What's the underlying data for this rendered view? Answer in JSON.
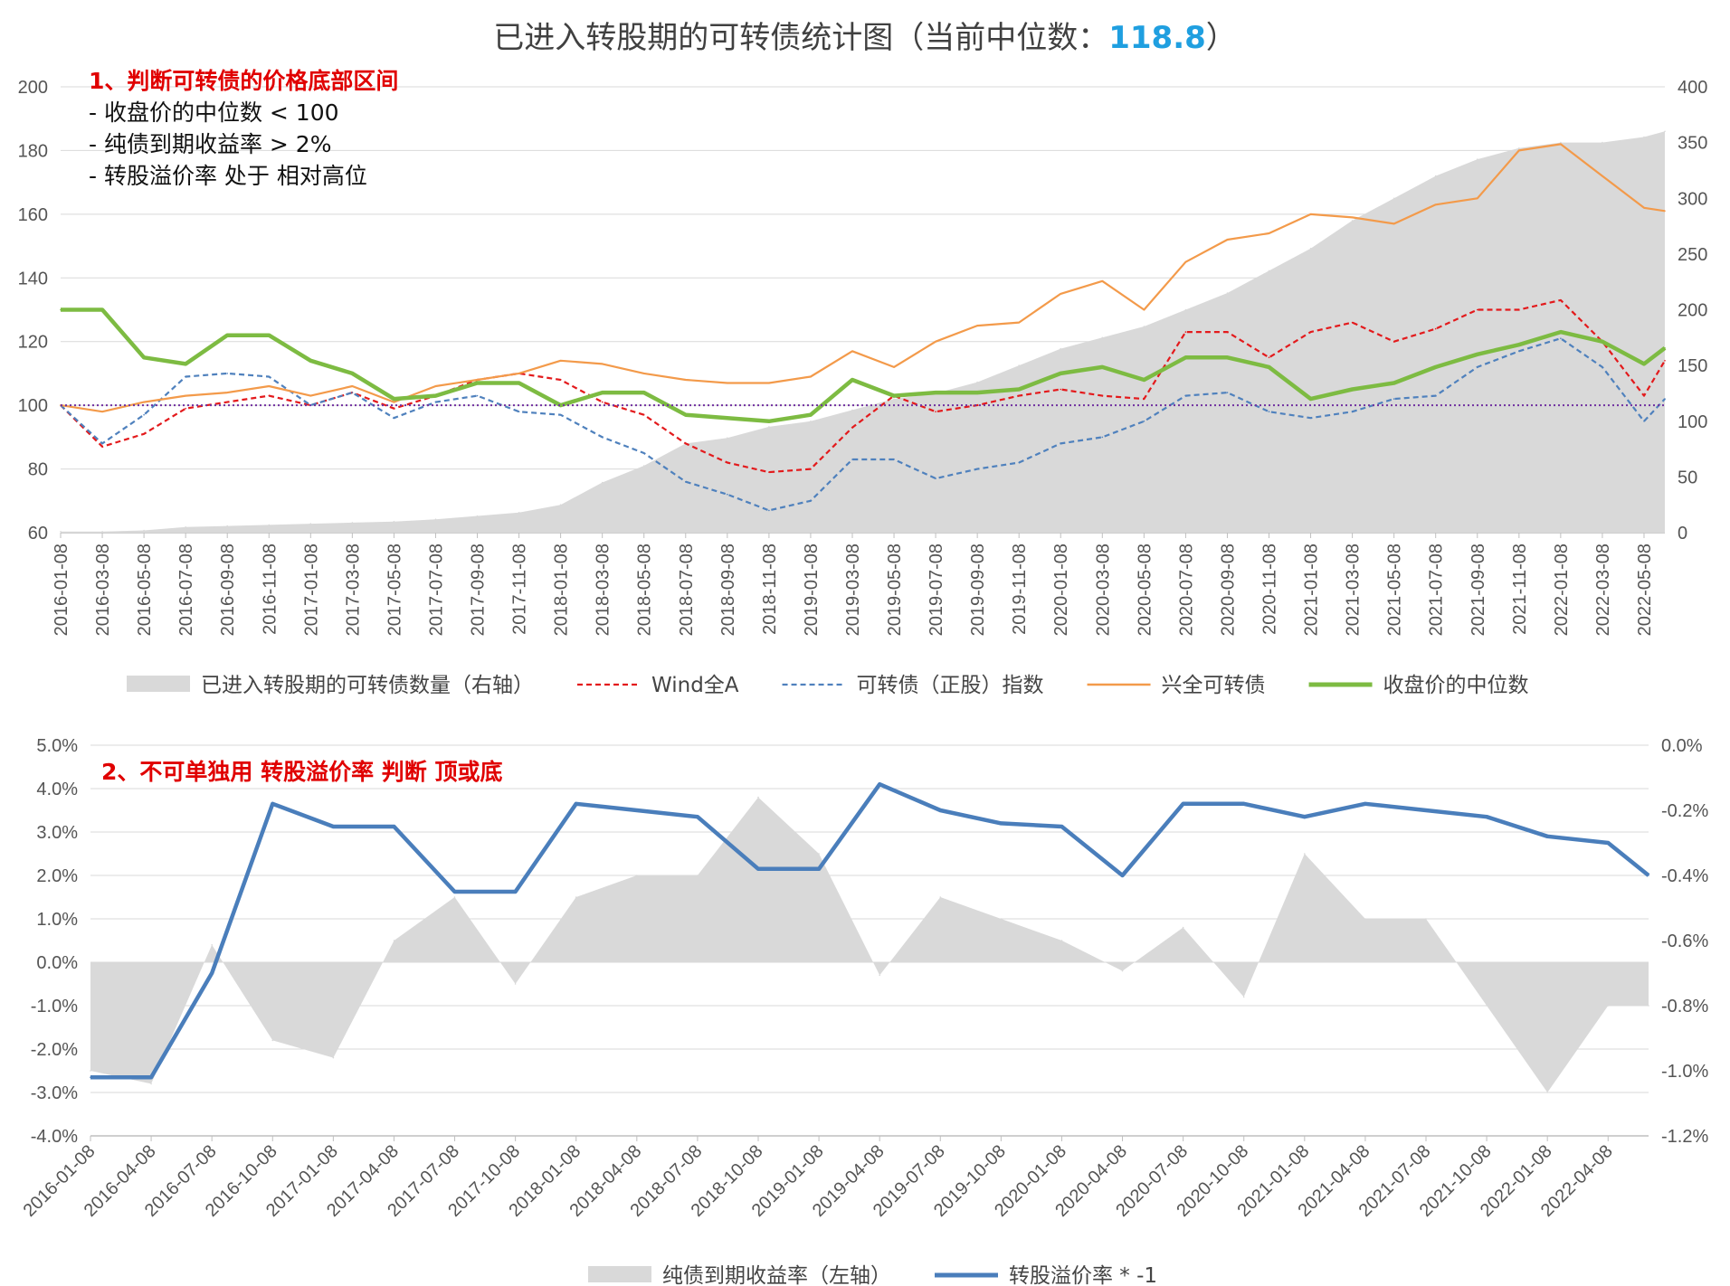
{
  "title": {
    "text": "已进入转股期的可转债统计图（当前中位数：",
    "median": "118.8",
    "close": "）"
  },
  "notes": {
    "note1": {
      "head": "1、判断可转债的价格底部区间",
      "lines": [
        "- 收盘价的中位数 < 100",
        "- 纯债到期收益率 > 2%",
        "- 转股溢价率 处于 相对高位"
      ]
    },
    "note2": {
      "head": "2、不可单独用 转股溢价率 判断 顶或底"
    }
  },
  "colors": {
    "area": "#d9d9d9",
    "wind": "#e31a1c",
    "cb_index": "#4f81bd",
    "xq_cb": "#f39a4a",
    "median": "#7dbb42",
    "premium": "#4a7ebb",
    "ref_line": "#7030a0",
    "grid": "#d9d9d9",
    "median_highlight": "#1f9fe0"
  },
  "chart_data": [
    {
      "type": "line",
      "chart_subtype": "line+area (dual axis)",
      "x": [
        "2016-01",
        "2016-03",
        "2016-05",
        "2016-07",
        "2016-09",
        "2016-11",
        "2017-01",
        "2017-03",
        "2017-05",
        "2017-07",
        "2017-09",
        "2017-11",
        "2018-01",
        "2018-03",
        "2018-05",
        "2018-07",
        "2018-09",
        "2018-11",
        "2019-01",
        "2019-03",
        "2019-05",
        "2019-07",
        "2019-09",
        "2019-11",
        "2020-01",
        "2020-03",
        "2020-05",
        "2020-07",
        "2020-09",
        "2020-11",
        "2021-01",
        "2021-03",
        "2021-05",
        "2021-07",
        "2021-09",
        "2021-11",
        "2022-01",
        "2022-03",
        "2022-05",
        "2022-06"
      ],
      "x_tick_labels": [
        "2016-01-08",
        "2016-03-08",
        "2016-05-08",
        "2016-07-08",
        "2016-09-08",
        "2016-11-08",
        "2017-01-08",
        "2017-03-08",
        "2017-05-08",
        "2017-07-08",
        "2017-09-08",
        "2017-11-08",
        "2018-01-08",
        "2018-03-08",
        "2018-05-08",
        "2018-07-08",
        "2018-09-08",
        "2018-11-08",
        "2019-01-08",
        "2019-03-08",
        "2019-05-08",
        "2019-07-08",
        "2019-09-08",
        "2019-11-08",
        "2020-01-08",
        "2020-03-08",
        "2020-05-08",
        "2020-07-08",
        "2020-09-08",
        "2020-11-08",
        "2021-01-08",
        "2021-03-08",
        "2021-05-08",
        "2021-07-08",
        "2021-09-08",
        "2021-11-08",
        "2022-01-08",
        "2022-03-08",
        "2022-05-08"
      ],
      "y_left": {
        "ylim": [
          60,
          200
        ],
        "ticks": [
          "200",
          "180",
          "160",
          "140",
          "120",
          "100",
          "80",
          "60"
        ]
      },
      "y_right": {
        "ylim": [
          0,
          400
        ],
        "ticks": [
          "400",
          "350",
          "300",
          "250",
          "200",
          "150",
          "100",
          "50",
          "0"
        ]
      },
      "reference_line": 100,
      "series": [
        {
          "name": "已进入转股期的可转债数量（右轴）",
          "kind": "area",
          "axis": "right",
          "values": [
            1,
            1,
            2,
            5,
            6,
            7,
            8,
            9,
            10,
            12,
            15,
            18,
            25,
            45,
            60,
            80,
            85,
            95,
            100,
            110,
            120,
            125,
            135,
            150,
            165,
            175,
            185,
            200,
            215,
            235,
            255,
            280,
            300,
            320,
            335,
            345,
            350,
            350,
            355,
            360
          ]
        },
        {
          "name": "Wind全A",
          "kind": "dashed",
          "axis": "left",
          "values": [
            100,
            87,
            91,
            99,
            101,
            103,
            100,
            104,
            99,
            103,
            108,
            110,
            108,
            101,
            97,
            88,
            82,
            79,
            80,
            93,
            103,
            98,
            100,
            103,
            105,
            103,
            102,
            123,
            123,
            115,
            123,
            126,
            120,
            124,
            130,
            130,
            133,
            120,
            103,
            114
          ]
        },
        {
          "name": "可转债（正股）指数",
          "kind": "dashed",
          "axis": "left",
          "values": [
            100,
            88,
            97,
            109,
            110,
            109,
            100,
            104,
            96,
            101,
            103,
            98,
            97,
            90,
            85,
            76,
            72,
            67,
            70,
            83,
            83,
            77,
            80,
            82,
            88,
            90,
            95,
            103,
            104,
            98,
            96,
            98,
            102,
            103,
            112,
            117,
            121,
            112,
            95,
            102
          ]
        },
        {
          "name": "兴全可转债",
          "kind": "solid",
          "axis": "left",
          "values": [
            100,
            98,
            101,
            103,
            104,
            106,
            103,
            106,
            101,
            106,
            108,
            110,
            114,
            113,
            110,
            108,
            107,
            107,
            109,
            117,
            112,
            120,
            125,
            126,
            135,
            139,
            130,
            145,
            152,
            154,
            160,
            159,
            157,
            163,
            165,
            180,
            182,
            172,
            162,
            161
          ]
        },
        {
          "name": "收盘价的中位数",
          "kind": "thick",
          "axis": "left",
          "values": [
            130,
            130,
            115,
            113,
            122,
            122,
            114,
            110,
            102,
            103,
            107,
            107,
            100,
            104,
            104,
            97,
            96,
            95,
            97,
            108,
            103,
            104,
            104,
            105,
            110,
            112,
            108,
            115,
            115,
            112,
            102,
            105,
            107,
            112,
            116,
            119,
            123,
            120,
            113,
            118
          ]
        }
      ],
      "legend": "bottom"
    },
    {
      "type": "line",
      "chart_subtype": "line+area (dual axis)",
      "x": [
        "2016-01",
        "2016-04",
        "2016-07",
        "2016-10",
        "2017-01",
        "2017-04",
        "2017-07",
        "2017-10",
        "2018-01",
        "2018-04",
        "2018-07",
        "2018-10",
        "2019-01",
        "2019-04",
        "2019-07",
        "2019-10",
        "2020-01",
        "2020-04",
        "2020-07",
        "2020-10",
        "2021-01",
        "2021-04",
        "2021-07",
        "2021-10",
        "2022-01",
        "2022-04",
        "2022-06"
      ],
      "x_tick_labels": [
        "2016-01-08",
        "2016-04-08",
        "2016-07-08",
        "2016-10-08",
        "2017-01-08",
        "2017-04-08",
        "2017-07-08",
        "2017-10-08",
        "2018-01-08",
        "2018-04-08",
        "2018-07-08",
        "2018-10-08",
        "2019-01-08",
        "2019-04-08",
        "2019-07-08",
        "2019-10-08",
        "2020-01-08",
        "2020-04-08",
        "2020-07-08",
        "2020-10-08",
        "2021-01-08",
        "2021-04-08",
        "2021-07-08",
        "2021-10-08",
        "2022-01-08",
        "2022-04-08"
      ],
      "y_left": {
        "ylim": [
          -4,
          5
        ],
        "ticks": [
          "5.0%",
          "4.0%",
          "3.0%",
          "2.0%",
          "1.0%",
          "0.0%",
          "-1.0%",
          "-2.0%",
          "-3.0%",
          "-4.0%"
        ]
      },
      "y_right": {
        "ylim": [
          -1.2,
          0
        ],
        "ticks": [
          "0.0%",
          "-0.2%",
          "-0.4%",
          "-0.6%",
          "-0.8%",
          "-1.0%",
          "-1.2%"
        ]
      },
      "series": [
        {
          "name": "纯债到期收益率（左轴）",
          "kind": "area",
          "axis": "left",
          "values": [
            -2.5,
            -2.8,
            0.4,
            -1.8,
            -2.2,
            0.5,
            1.5,
            -0.5,
            1.5,
            2.0,
            2.0,
            3.8,
            2.5,
            -0.3,
            1.5,
            1.0,
            0.5,
            -0.2,
            0.8,
            -0.8,
            2.5,
            1.0,
            1.0,
            -1.0,
            -3.0,
            -1.0,
            -1.0
          ]
        },
        {
          "name": "转股溢价率 * -1",
          "kind": "thick",
          "axis": "right",
          "values": [
            -1.02,
            -1.02,
            -0.7,
            -0.18,
            -0.25,
            -0.25,
            -0.45,
            -0.45,
            -0.18,
            -0.2,
            -0.22,
            -0.38,
            -0.38,
            -0.12,
            -0.2,
            -0.24,
            -0.25,
            -0.4,
            -0.18,
            -0.18,
            -0.22,
            -0.18,
            -0.2,
            -0.22,
            -0.28,
            -0.3,
            -0.4
          ]
        }
      ],
      "legend": "bottom"
    }
  ]
}
